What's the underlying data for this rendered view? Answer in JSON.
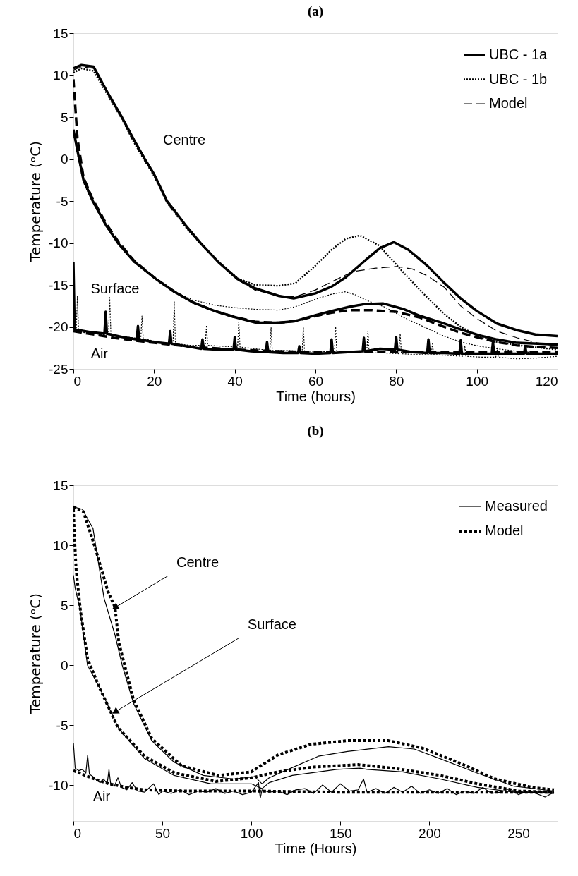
{
  "chart_data": [
    {
      "type": "line",
      "title": "(a)",
      "xlabel": "Time (hours)",
      "ylabel": "Temperature (ᵒC)",
      "xlim": [
        0,
        120
      ],
      "ylim": [
        -25,
        15
      ],
      "xticks": [
        0,
        20,
        40,
        60,
        80,
        100,
        120
      ],
      "yticks": [
        -25,
        -20,
        -15,
        -10,
        -5,
        0,
        5,
        10,
        15
      ],
      "legend": "top right",
      "grid": false,
      "annotations": [
        "Centre",
        "Surface",
        "Air"
      ],
      "series": [
        {
          "name": "UBC - 1a",
          "color": "#000000",
          "line_style": "solid",
          "x": [
            0,
            2,
            5,
            8.5,
            12,
            15,
            17.7,
            20,
            23.2,
            25,
            28,
            31.5,
            36,
            40.7,
            45,
            50.9,
            54.6,
            60,
            64,
            67.5,
            73,
            76,
            79.4,
            83,
            87.7,
            92,
            96,
            100,
            105,
            110,
            114.5,
            120
          ],
          "values": [
            10.8,
            11.2,
            11,
            7.9,
            5,
            2.3,
            0,
            -1.8,
            -5,
            -6.1,
            -8,
            -10,
            -12.3,
            -14.3,
            -15.4,
            -16.3,
            -16.6,
            -16,
            -15.2,
            -14.1,
            -11.8,
            -10.6,
            -9.9,
            -10.8,
            -12.7,
            -14.8,
            -16.6,
            -18.1,
            -19.6,
            -20.4,
            -20.9,
            -21.1
          ]
        },
        {
          "name": "UBC - 1b",
          "color": "#000000",
          "line_style": "dotted",
          "x": [
            0,
            2,
            5,
            8.5,
            12,
            15,
            17.7,
            20,
            23.2,
            28,
            31.5,
            36,
            40.7,
            45,
            50.9,
            55,
            60,
            64,
            67.5,
            71,
            75.8,
            81,
            86.9,
            92,
            96,
            100,
            105,
            112,
            120
          ],
          "values": [
            10.3,
            10.8,
            10.5,
            7.6,
            4.8,
            2,
            -0.2,
            -2,
            -5.2,
            -8.2,
            -10.1,
            -12.3,
            -14.2,
            -15,
            -15.1,
            -14.8,
            -12.7,
            -10.8,
            -9.5,
            -9.1,
            -10.3,
            -13.1,
            -16.1,
            -18.5,
            -20,
            -21,
            -21.8,
            -22.3,
            -22.7
          ]
        },
        {
          "name": "Model",
          "color": "#000000",
          "line_style": "dashed",
          "x": [
            0,
            2,
            5,
            8.5,
            12,
            15,
            17.7,
            20,
            23.2,
            28,
            31.5,
            36,
            40.7,
            45,
            50.9,
            55,
            60,
            63.7,
            69.3,
            75,
            80,
            84,
            87.7,
            92,
            96,
            100,
            105,
            110,
            115,
            120
          ],
          "values": [
            10.6,
            11,
            10.8,
            7.8,
            5,
            2.4,
            0.2,
            -1.8,
            -5.1,
            -8.1,
            -10.1,
            -12.3,
            -14.4,
            -15.6,
            -16.3,
            -16.4,
            -15.6,
            -14.7,
            -13.4,
            -13,
            -12.8,
            -13.1,
            -13.9,
            -15.3,
            -17.5,
            -19,
            -20.5,
            -21.3,
            -21.9,
            -22.3
          ]
        },
        {
          "color": "#000000",
          "line_style": "solid",
          "x": [
            0,
            1,
            2.5,
            4.8,
            8,
            11.2,
            15,
            20.5,
            25,
            29.7,
            35,
            39.8,
            45.3,
            50.9,
            55,
            60,
            64,
            68.4,
            72,
            76.7,
            82,
            86,
            91.4,
            96,
            100.6,
            105,
            110,
            115,
            120
          ],
          "values": [
            3.5,
            1,
            -2.5,
            -5,
            -7.8,
            -10.1,
            -12.2,
            -14.3,
            -15.8,
            -17.1,
            -18.1,
            -18.8,
            -19.5,
            -19.5,
            -19.3,
            -18.6,
            -18.1,
            -17.6,
            -17.3,
            -17.2,
            -17.9,
            -18.7,
            -19.5,
            -20.3,
            -21,
            -21.5,
            -21.9,
            -22,
            -22.1
          ]
        },
        {
          "color": "#000000",
          "line_style": "dotted",
          "x": [
            0,
            1,
            2.5,
            4.8,
            8,
            11.2,
            15,
            20.5,
            25,
            29.7,
            35,
            39.8,
            45,
            50.9,
            55,
            60,
            64,
            67.5,
            70,
            73,
            77,
            82,
            86,
            91.4,
            96,
            100.6,
            105,
            110,
            115,
            120
          ],
          "values": [
            3,
            0.6,
            -2.8,
            -5.2,
            -8,
            -10.2,
            -12.3,
            -14.4,
            -15.8,
            -16.8,
            -17.4,
            -17.7,
            -17.9,
            -18,
            -17.6,
            -16.7,
            -16.1,
            -15.8,
            -16.2,
            -16.9,
            -17.6,
            -18.9,
            -19.8,
            -21,
            -21.8,
            -22.3,
            -22.6,
            -22.9,
            -23.1,
            -23.2
          ]
        },
        {
          "color": "#000000",
          "line_style": "dashed",
          "x": [
            0,
            0.5,
            1,
            2.5,
            4.8,
            8,
            11.2,
            15,
            20.5,
            25,
            29.7,
            35,
            39.8,
            45.3,
            50.9,
            55,
            60,
            64,
            68.4,
            74,
            80,
            86,
            91.4,
            96,
            100.6,
            105,
            110,
            115,
            120
          ],
          "values": [
            9.5,
            6,
            2.5,
            -2.2,
            -4.8,
            -7.6,
            -9.9,
            -12.1,
            -14.3,
            -15.8,
            -17.1,
            -18.1,
            -18.8,
            -19.4,
            -19.5,
            -19.3,
            -18.7,
            -18.3,
            -18,
            -18,
            -18.2,
            -18.9,
            -19.9,
            -20.7,
            -21.3,
            -21.8,
            -22.2,
            -22.4,
            -22.5
          ]
        },
        {
          "color": "#000000",
          "line_style": "solid",
          "x": [
            0,
            0.3,
            4,
            7.7,
            8,
            8.3,
            12,
            15.7,
            16,
            16.3,
            20,
            23.7,
            24,
            24.3,
            28,
            31.7,
            32,
            32.3,
            36,
            39.7,
            40,
            40.3,
            44,
            47.7,
            48,
            48.3,
            52,
            55.7,
            56,
            56.3,
            60,
            63.7,
            64,
            64.3,
            68,
            71.7,
            72,
            72.3,
            76,
            79.7,
            80,
            80.3,
            84,
            87.7,
            88,
            88.3,
            92,
            95.7,
            96,
            96.3,
            100,
            103.7,
            104,
            104.3,
            108,
            111.7,
            112,
            112.3,
            116,
            120
          ],
          "values": [
            -12.3,
            -20.3,
            -20.6,
            -20.8,
            -18.2,
            -20.8,
            -21.2,
            -21.5,
            -19.9,
            -21.5,
            -21.8,
            -22,
            -20.5,
            -22,
            -22.3,
            -22.6,
            -21.5,
            -22.6,
            -22.7,
            -22.7,
            -21.2,
            -22.7,
            -22.9,
            -23,
            -21.8,
            -23,
            -23.1,
            -23.1,
            -22.3,
            -23.1,
            -23.2,
            -23.1,
            -21.5,
            -23.1,
            -23,
            -22.9,
            -21.3,
            -22.9,
            -22.6,
            -22.7,
            -21.2,
            -22.7,
            -23,
            -23.1,
            -21.5,
            -23.1,
            -23.1,
            -23.2,
            -21.6,
            -23.2,
            -23.2,
            -23.2,
            -21.8,
            -23.2,
            -23.2,
            -23.2,
            -22.3,
            -23.2,
            -23.2,
            -23.2
          ]
        },
        {
          "color": "#000000",
          "line_style": "dotted",
          "x": [
            0,
            0.7,
            1,
            1.3,
            5,
            8.7,
            9,
            9.3,
            13,
            16.7,
            17,
            17.3,
            21,
            24.7,
            25,
            25.3,
            29,
            32.7,
            33,
            33.3,
            37,
            40.7,
            41,
            41.3,
            45,
            48.7,
            49,
            49.3,
            53,
            56.7,
            57,
            57.3,
            61,
            64.7,
            65,
            65.3,
            69,
            72.7,
            73,
            73.3,
            77,
            80.7,
            81,
            81.3,
            85,
            88.7,
            89,
            89.3,
            93,
            96.7,
            97,
            97.3,
            101,
            104.7,
            105,
            105.3,
            110,
            115,
            120
          ],
          "values": [
            -20.5,
            -20.5,
            -16.3,
            -20.6,
            -20.8,
            -21,
            -16.5,
            -21,
            -21.2,
            -21.4,
            -18.7,
            -21.4,
            -21.8,
            -22,
            -17,
            -22,
            -22.2,
            -22.2,
            -19.8,
            -22.2,
            -22.3,
            -22.4,
            -19.4,
            -22.4,
            -22.6,
            -22.8,
            -20.1,
            -22.8,
            -22.8,
            -22.9,
            -20.1,
            -22.9,
            -22.9,
            -23,
            -20,
            -23,
            -23,
            -23.1,
            -20.5,
            -23.1,
            -23.1,
            -23.2,
            -20.8,
            -23.2,
            -23.3,
            -23.3,
            -22,
            -23.3,
            -23.4,
            -23.5,
            -22.2,
            -23.5,
            -23.6,
            -23.6,
            -22.5,
            -23.6,
            -23.8,
            -23.7,
            -23.5
          ]
        },
        {
          "color": "#000000",
          "line_style": "dashed",
          "x": [
            0,
            10,
            20,
            30,
            40,
            50,
            60,
            80,
            100,
            120
          ],
          "values": [
            -20.5,
            -21.3,
            -21.9,
            -22.4,
            -22.7,
            -22.9,
            -23,
            -23,
            -23,
            -23
          ]
        }
      ]
    },
    {
      "type": "line",
      "title": "(b)",
      "xlabel": "Time (Hours)",
      "ylabel": "Temperature (ᵒC)",
      "xlim": [
        0,
        272
      ],
      "ylim": [
        -13,
        15
      ],
      "xticks": [
        0,
        50,
        100,
        150,
        200,
        250
      ],
      "yticks": [
        -10,
        -5,
        0,
        5,
        10,
        15
      ],
      "legend": "top right",
      "grid": false,
      "annotations": [
        {
          "text": "Centre",
          "x": 23.4,
          "y": 4.8
        },
        {
          "text": "Surface",
          "x": 23.4,
          "y": -3.9
        },
        "Air"
      ],
      "series": [
        {
          "name": "Measured",
          "color": "#000000",
          "line_style": "solid",
          "x": [
            0,
            5,
            11,
            17.2,
            23.4,
            27.4,
            33.8,
            44,
            56.6,
            73,
            90,
            102,
            106,
            110,
            119,
            137.6,
            154,
            177,
            191.5,
            206,
            226.8,
            247.5,
            270
          ],
          "values": [
            13.2,
            13,
            11.4,
            5.6,
            2.5,
            0,
            -3.2,
            -6.3,
            -8.1,
            -9.2,
            -9.5,
            -9.3,
            -9.9,
            -9.4,
            -8.8,
            -7.6,
            -7.2,
            -6.8,
            -7,
            -7.8,
            -9,
            -10.1,
            -10.5
          ]
        },
        {
          "name": "Model",
          "color": "#000000",
          "line_style": "dotted",
          "x": [
            0,
            5.6,
            12,
            19.3,
            23.4,
            25.5,
            33.8,
            44,
            60.8,
            81.5,
            100,
            114.7,
            133.4,
            154,
            177,
            195.6,
            216,
            237,
            258,
            270
          ],
          "values": [
            13.2,
            12.8,
            9.9,
            6.2,
            4.8,
            1.9,
            -2.9,
            -6.1,
            -8.4,
            -9.2,
            -8.9,
            -7.5,
            -6.6,
            -6.3,
            -6.3,
            -6.9,
            -8.1,
            -9.5,
            -10.2,
            -10.4
          ]
        },
        {
          "color": "#000000",
          "line_style": "solid",
          "x": [
            0,
            1,
            3.7,
            7.9,
            15.1,
            25.5,
            40,
            56.6,
            77.4,
            100,
            106,
            110,
            123,
            148,
            161,
            165,
            185,
            206,
            227,
            247.5,
            270
          ],
          "values": [
            7.5,
            6.4,
            4.7,
            0,
            -2,
            -5.3,
            -7.8,
            -9.2,
            -9.9,
            -9.9,
            -10.3,
            -9.8,
            -9.2,
            -8.7,
            -8.6,
            -8.7,
            -8.9,
            -9.5,
            -10.2,
            -10.6,
            -10.7
          ]
        },
        {
          "color": "#000000",
          "line_style": "dotted",
          "x": [
            0,
            0.5,
            1.5,
            4,
            8,
            15,
            25,
            40,
            57,
            80,
            100,
            115,
            135,
            160,
            180,
            206,
            227,
            250,
            270
          ],
          "values": [
            13,
            11,
            8,
            4.5,
            0.5,
            -2,
            -5.2,
            -7.6,
            -9,
            -9.7,
            -9.4,
            -8.9,
            -8.5,
            -8.3,
            -8.6,
            -9.2,
            -9.9,
            -10.5,
            -10.6
          ]
        },
        {
          "color": "#000000",
          "line_style": "solid",
          "x": [
            0,
            1,
            3,
            5,
            7,
            8,
            9,
            11,
            13,
            15,
            17,
            19,
            20,
            21,
            23,
            25,
            27,
            30,
            33,
            36,
            40,
            45,
            48,
            50,
            55,
            60,
            65,
            70,
            75,
            80,
            85,
            90,
            95,
            100,
            104,
            105,
            106,
            110,
            115,
            120,
            125,
            130,
            135,
            140,
            145,
            150,
            155,
            160,
            163,
            165,
            170,
            175,
            180,
            185,
            190,
            195,
            200,
            205,
            210,
            215,
            220,
            225,
            230,
            235,
            240,
            245,
            250,
            255,
            260,
            265,
            270
          ],
          "values": [
            -6.5,
            -8.6,
            -8.8,
            -8.7,
            -9,
            -7.5,
            -9.1,
            -9.3,
            -9.6,
            -9.8,
            -9.5,
            -9.9,
            -8.7,
            -10,
            -10.1,
            -9.4,
            -10.2,
            -10.4,
            -9.8,
            -10.5,
            -10.6,
            -9.9,
            -10.8,
            -10.5,
            -10.7,
            -10.4,
            -10.8,
            -10.5,
            -10.6,
            -10.3,
            -10.7,
            -10.5,
            -10.8,
            -10.6,
            -9.8,
            -11.1,
            -10.4,
            -10.6,
            -10.5,
            -10.8,
            -10.4,
            -10.3,
            -10.7,
            -10,
            -10.6,
            -9.9,
            -10.5,
            -10.4,
            -9.5,
            -10.6,
            -10.3,
            -10.7,
            -10.2,
            -10.6,
            -10.1,
            -10.7,
            -10.4,
            -10.7,
            -10.3,
            -10.8,
            -10.5,
            -10.7,
            -10.2,
            -10.7,
            -10.6,
            -10.3,
            -10.8,
            -10.5,
            -10.7,
            -11,
            -10.6
          ]
        },
        {
          "color": "#000000",
          "line_style": "dotted",
          "x": [
            0,
            10,
            20,
            30,
            40,
            60,
            100,
            150,
            200,
            270
          ],
          "values": [
            -8.8,
            -9.4,
            -9.9,
            -10.2,
            -10.4,
            -10.5,
            -10.5,
            -10.6,
            -10.6,
            -10.6
          ]
        }
      ]
    }
  ]
}
